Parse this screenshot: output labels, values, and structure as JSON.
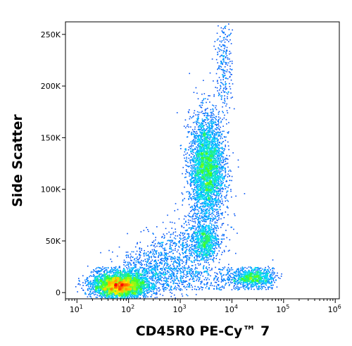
{
  "chart_data": {
    "type": "scatter",
    "plot_style": "density dot plot (flow cytometry)",
    "xlabel": "CD45R0 PE-Cy™ 7",
    "ylabel": "Side Scatter",
    "x_scale": "log",
    "xlim": [
      6,
      1200000
    ],
    "ylim": [
      -6000,
      262144
    ],
    "x_ticks": [
      {
        "value": 10,
        "base": "10",
        "exp": "1"
      },
      {
        "value": 100,
        "base": "10",
        "exp": "2"
      },
      {
        "value": 1000,
        "base": "10",
        "exp": "3"
      },
      {
        "value": 10000,
        "base": "10",
        "exp": "4"
      },
      {
        "value": 100000,
        "base": "10",
        "exp": "5"
      },
      {
        "value": 1000000,
        "base": "10",
        "exp": "6"
      }
    ],
    "y_ticks": [
      {
        "value": 0,
        "label": "0"
      },
      {
        "value": 50000,
        "label": "50K"
      },
      {
        "value": 100000,
        "label": "100K"
      },
      {
        "value": 150000,
        "label": "150K"
      },
      {
        "value": 200000,
        "label": "200K"
      },
      {
        "value": 250000,
        "label": "250K"
      }
    ],
    "grid": false,
    "color_scale": "density: blue (low) → cyan → green → yellow → red (high)",
    "populations": [
      {
        "x_center": 65,
        "y_center": 7000,
        "x_spread_decades": 0.26,
        "y_spread": 6000,
        "weight": 3200,
        "peak_color": "#ff2000"
      },
      {
        "x_center": 3200,
        "y_center": 120000,
        "x_spread_decades": 0.17,
        "y_spread": 26000,
        "weight": 3500,
        "peak_color": "#ff5000"
      },
      {
        "x_center": 3000,
        "y_center": 50000,
        "x_spread_decades": 0.12,
        "y_spread": 9000,
        "weight": 700,
        "peak_color": "#00dcff"
      },
      {
        "x_center": 25000,
        "y_center": 15000,
        "x_spread_decades": 0.2,
        "y_spread": 4000,
        "weight": 700,
        "peak_color": "#50ff30"
      },
      {
        "x_center": 7000,
        "y_center": 222000,
        "x_spread_decades": 0.08,
        "y_spread": 25000,
        "weight": 250,
        "peak_color": "#0040ff"
      }
    ]
  }
}
